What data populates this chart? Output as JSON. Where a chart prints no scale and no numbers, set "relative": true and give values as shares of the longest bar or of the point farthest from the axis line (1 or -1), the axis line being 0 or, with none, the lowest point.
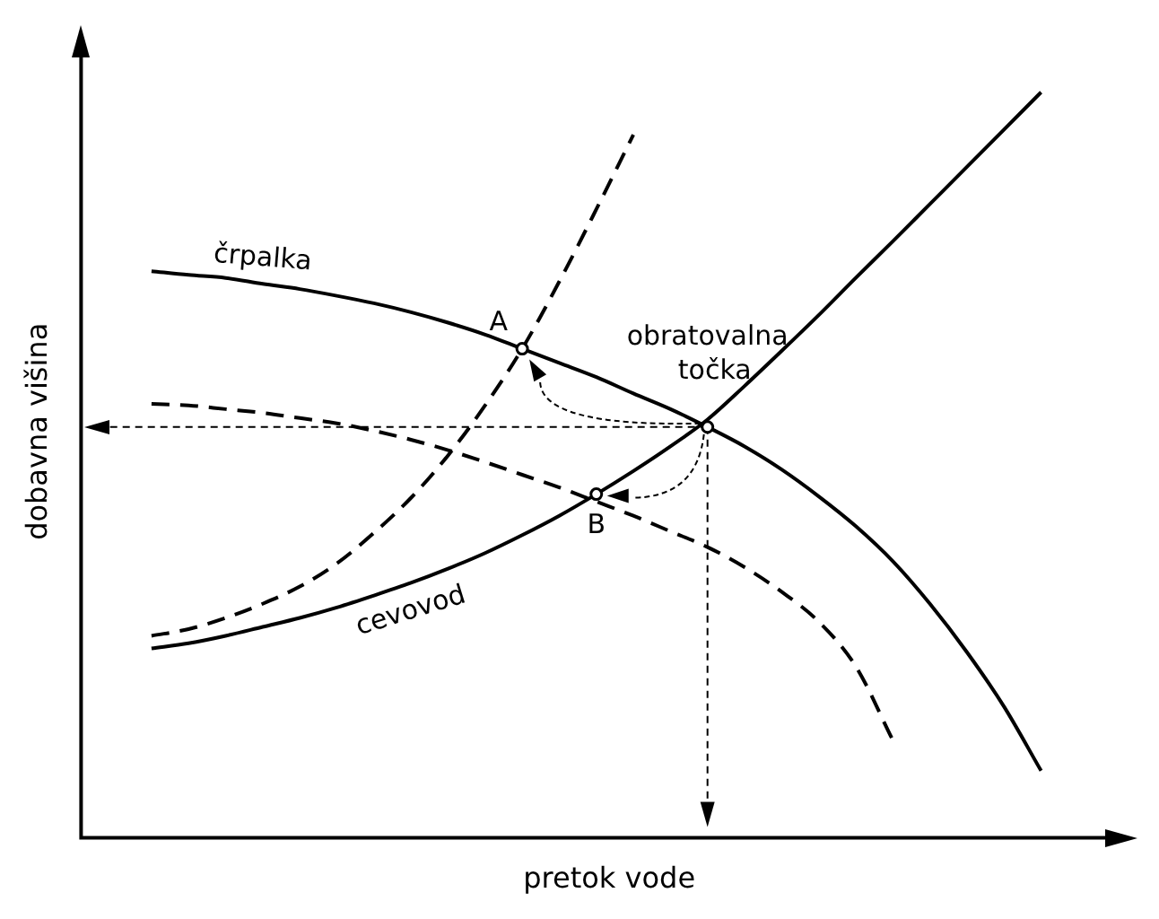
{
  "chart_data": {
    "type": "line",
    "relative": true,
    "xlabel": "pretok vode",
    "ylabel": "dobavna višina",
    "categories": [
      null,
      null,
      null,
      null,
      null,
      null,
      null,
      null,
      null,
      null,
      null,
      null,
      null,
      null,
      null,
      null,
      null,
      null,
      null,
      null,
      null,
      null,
      null,
      null,
      null
    ],
    "series": [
      {
        "name": "črpalka",
        "color": "#000000",
        "line_style": "solid",
        "values": [
          0.76,
          0.755,
          0.751,
          0.743,
          0.736,
          0.727,
          0.717,
          0.705,
          0.691,
          0.675,
          0.656,
          0.637,
          0.618,
          0.596,
          0.575,
          0.551,
          0.525,
          0.494,
          0.458,
          0.418,
          0.371,
          0.314,
          0.249,
          0.176,
          0.09
        ]
      },
      {
        "color": "#000000",
        "line_style": "dashed",
        "values": [
          0.582,
          0.58,
          0.575,
          0.57,
          0.563,
          0.556,
          0.546,
          0.534,
          0.52,
          0.504,
          0.487,
          0.47,
          0.451,
          0.432,
          0.411,
          0.39,
          0.363,
          0.33,
          0.29,
          0.23,
          0.131,
          null,
          null,
          null,
          null
        ]
      },
      {
        "name": "cevovod",
        "color": "#000000",
        "line_style": "solid",
        "values": [
          0.254,
          0.261,
          0.271,
          0.283,
          0.295,
          0.309,
          0.325,
          0.342,
          0.361,
          0.382,
          0.406,
          0.432,
          0.461,
          0.492,
          0.525,
          0.561,
          0.606,
          0.653,
          0.701,
          0.751,
          0.8,
          0.85,
          0.9,
          0.95,
          1
        ]
      },
      {
        "color": "#000000",
        "line_style": "dashed",
        "values": [
          0.271,
          0.28,
          0.295,
          0.314,
          0.337,
          0.368,
          0.409,
          0.456,
          0.513,
          0.58,
          0.656,
          0.746,
          0.843,
          0.943,
          null,
          null,
          null,
          null,
          null,
          null,
          null,
          null,
          null,
          null,
          null
        ]
      }
    ],
    "ref_lines": [
      {
        "axis": "y",
        "value": 0.551,
        "line_style": "dashed",
        "color": "#000000"
      }
    ],
    "annotations": [
      "A",
      "B",
      "obratovalna\ntočka"
    ],
    "grid": false,
    "legend": false,
    "marker": "none"
  }
}
